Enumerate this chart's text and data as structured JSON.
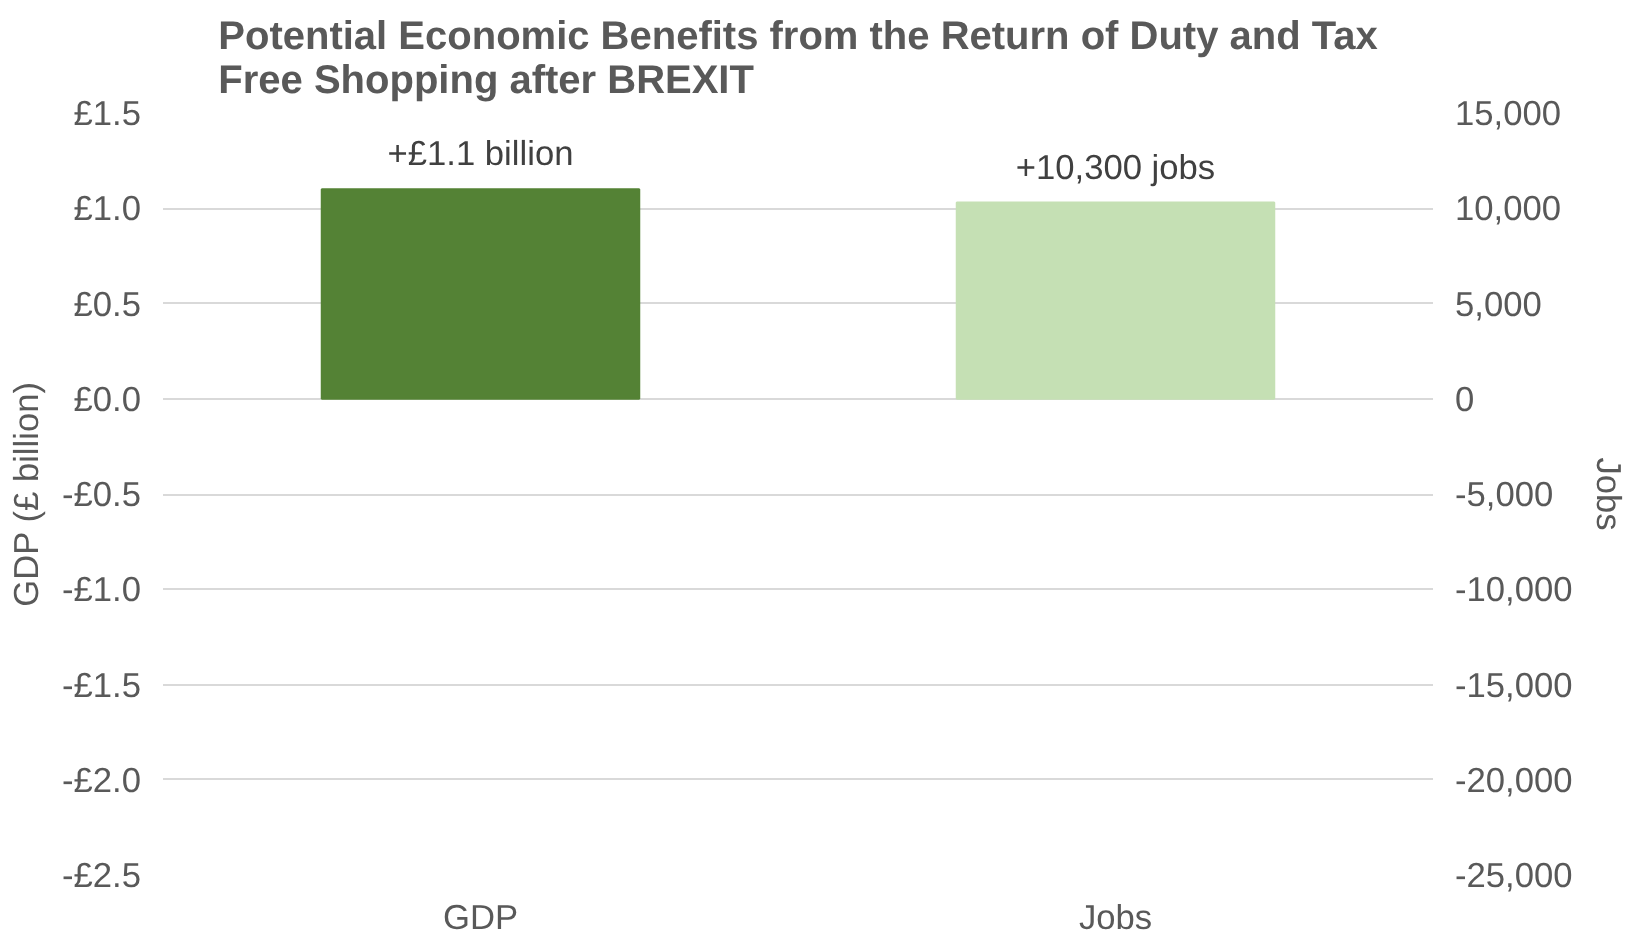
{
  "chart_data": {
    "type": "bar",
    "title": "Potential Economic Benefits from the Return of Duty and Tax\nFree Shopping after BREXIT",
    "categories": [
      "GDP",
      "Jobs"
    ],
    "series": [
      {
        "color": "#548235",
        "values": [
          1.1,
          null
        ],
        "value_labels": [
          "+£1.1 billion",
          null
        ]
      },
      {
        "color": "#c5e0b4",
        "values": [
          null,
          10300
        ],
        "axis": "y2",
        "value_labels": [
          null,
          "+10,300 jobs"
        ]
      }
    ],
    "ylabel": "GDP (£ billion)",
    "y2label": "Jobs",
    "ylim": [
      -2.5,
      1.5
    ],
    "yticks": [
      {
        "value": 1.5,
        "label": "£1.5"
      },
      {
        "value": 1.0,
        "label": "£1.0"
      },
      {
        "value": 0.5,
        "label": "£0.5"
      },
      {
        "value": 0,
        "label": "£0.0"
      },
      {
        "value": -0.5,
        "label": "-£0.5"
      },
      {
        "value": -1.0,
        "label": "-£1.0"
      },
      {
        "value": -1.5,
        "label": "-£1.5"
      },
      {
        "value": -2.0,
        "label": "-£2.0"
      },
      {
        "value": -2.5,
        "label": "-£2.5"
      }
    ],
    "y2lim": [
      -25000,
      15000
    ],
    "y2ticks": [
      {
        "value": 15000,
        "label": "15,000"
      },
      {
        "value": 10000,
        "label": "10,000"
      },
      {
        "value": 5000,
        "label": "5,000"
      },
      {
        "value": 0,
        "label": "0"
      },
      {
        "value": -5000,
        "label": "-5,000"
      },
      {
        "value": -10000,
        "label": "-10,000"
      },
      {
        "value": -15000,
        "label": "-15,000"
      },
      {
        "value": -20000,
        "label": "-20,000"
      },
      {
        "value": -25000,
        "label": "-25,000"
      }
    ],
    "grid": "y"
  }
}
